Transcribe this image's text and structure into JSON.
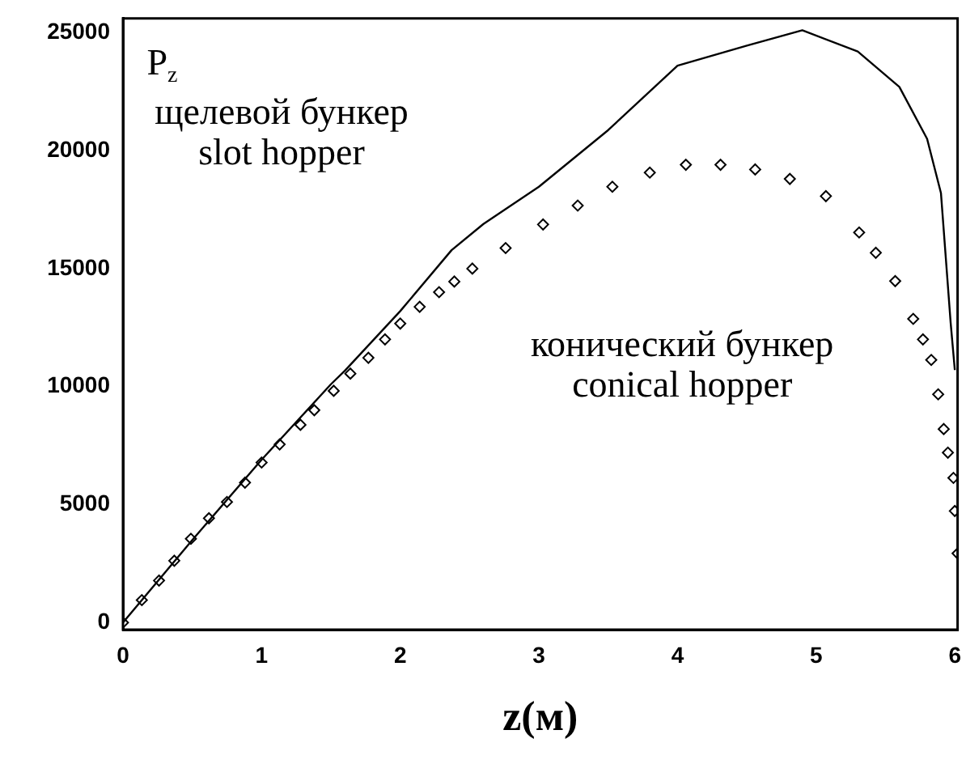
{
  "chart_data": {
    "type": "line",
    "xlabel": "z(м)",
    "xlim": [
      0,
      6.02
    ],
    "ylim": [
      -300,
      25600
    ],
    "xticks": [
      0,
      1,
      2,
      3,
      4,
      5,
      6
    ],
    "yticks": [
      0,
      5000,
      10000,
      15000,
      20000,
      25000
    ],
    "grid": false,
    "legend": false,
    "series": [
      {
        "name": "щелевой бункер\nslot hopper",
        "color": "#000000",
        "marker": "none",
        "line_style": "solid",
        "x": [
          0,
          0.5,
          1,
          1.5,
          1.6,
          2,
          2.37,
          2.6,
          3,
          3.5,
          4,
          4.5,
          4.9,
          5.3,
          5.6,
          5.8,
          5.9,
          5.97,
          6
        ],
        "values": [
          0,
          3500,
          6900,
          10100,
          10670,
          13200,
          15780,
          16890,
          18470,
          20870,
          23600,
          24450,
          25100,
          24200,
          22700,
          20500,
          18200,
          12700,
          10700
        ]
      },
      {
        "type": "scatter",
        "name": "конический бункер\nconical hopper",
        "color": "#000000",
        "marker": "diamond",
        "x": [
          0,
          0.136,
          0.26,
          0.37,
          0.49,
          0.62,
          0.75,
          0.88,
          1.0,
          1.13,
          1.28,
          1.38,
          1.52,
          1.64,
          1.77,
          1.89,
          2.0,
          2.14,
          2.28,
          2.39,
          2.52,
          2.76,
          3.03,
          3.28,
          3.53,
          3.8,
          4.06,
          4.31,
          4.56,
          4.81,
          5.07,
          5.31,
          5.43,
          5.57,
          5.7,
          5.77,
          5.83,
          5.88,
          5.92,
          5.95,
          5.99,
          6.0,
          6.02
        ],
        "values": [
          0,
          950,
          1780,
          2620,
          3550,
          4420,
          5110,
          5930,
          6780,
          7550,
          8380,
          9000,
          9820,
          10550,
          11220,
          12000,
          12670,
          13380,
          14000,
          14450,
          15000,
          15870,
          16870,
          17670,
          18470,
          19070,
          19400,
          19400,
          19200,
          18800,
          18070,
          16530,
          15670,
          14470,
          12870,
          12000,
          11130,
          9670,
          8200,
          7200,
          6130,
          4730,
          2930
        ]
      }
    ],
    "ylabel": "P$_{z}$"
  }
}
